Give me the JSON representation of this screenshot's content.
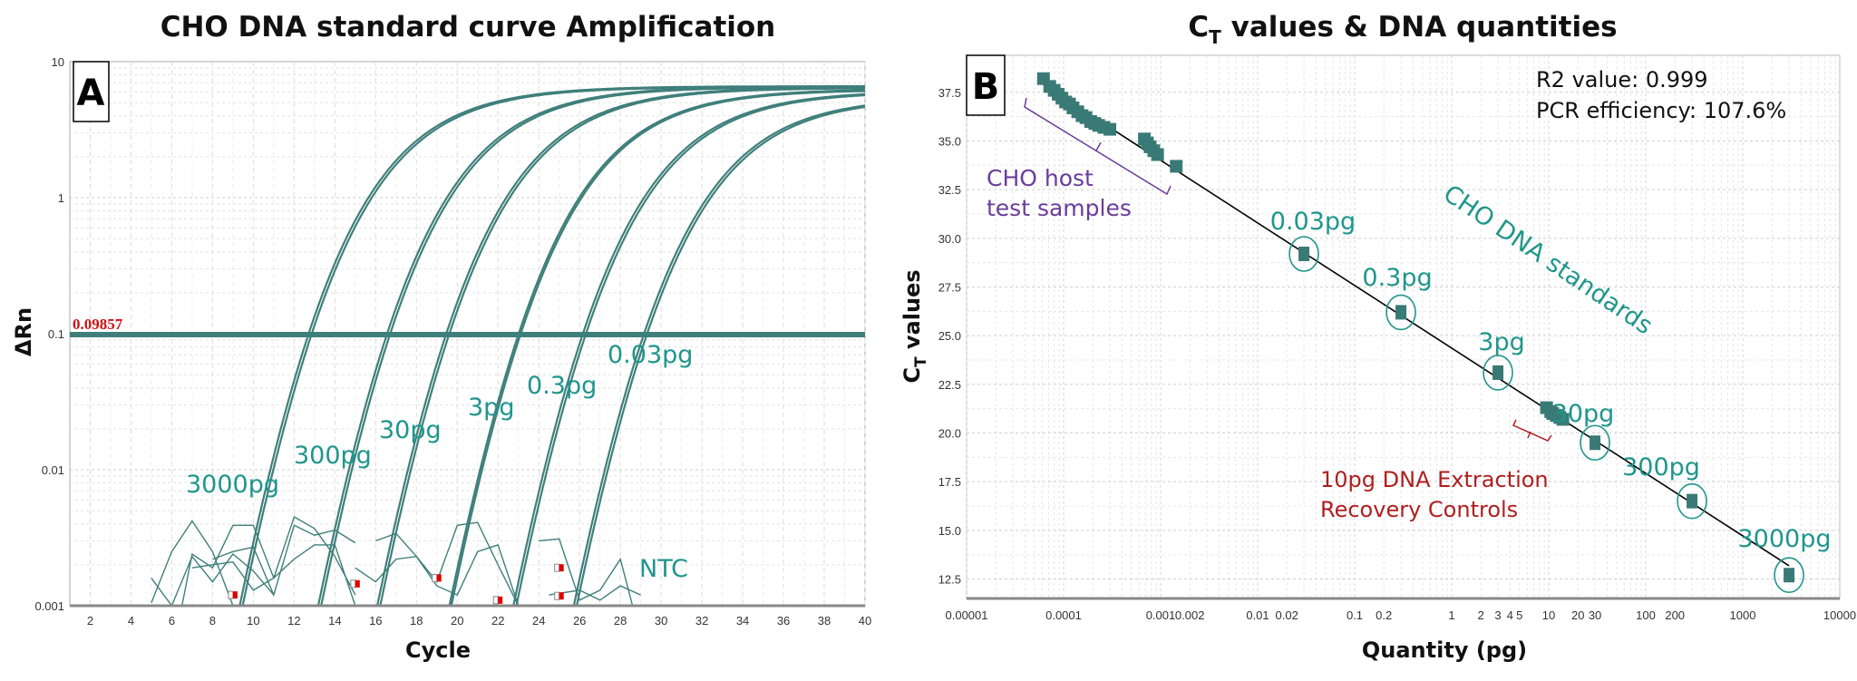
{
  "colors": {
    "curve": "#3f7f7b",
    "marker": "#3a7a76",
    "label_teal": "#1f968c",
    "threshold_label": "#d01010",
    "host_bracket": "#6a3d9a",
    "recovery": "#b01e1e",
    "fit_line": "#000000"
  },
  "chart_data": [
    {
      "type": "line",
      "panel_label": "A",
      "title": "CHO DNA standard curve Amplification",
      "xlabel": "Cycle",
      "ylabel": "ΔRn",
      "yscale": "log",
      "xlim": [
        1,
        40
      ],
      "ylim": [
        0.001,
        10
      ],
      "xticks": [
        "2",
        "4",
        "6",
        "8",
        "10",
        "12",
        "14",
        "16",
        "18",
        "20",
        "22",
        "24",
        "26",
        "28",
        "30",
        "32",
        "34",
        "36",
        "38",
        "40"
      ],
      "yticks": [
        "10",
        "1",
        "0.1",
        "0.01",
        "0.001"
      ],
      "grid": true,
      "threshold": 0.09857,
      "threshold_label": "0.09857",
      "series": [
        {
          "name": "3000pg",
          "ct": [
            12.7,
            12.85
          ],
          "plateau": [
            6.6,
            6.5
          ]
        },
        {
          "name": "300pg",
          "ct": [
            16.55,
            16.7
          ],
          "plateau": [
            6.6,
            6.5
          ]
        },
        {
          "name": "30pg",
          "ct": [
            19.45,
            19.6
          ],
          "plateau": [
            6.5,
            6.4
          ]
        },
        {
          "name": "3pg",
          "ct": [
            23.0,
            23.1
          ],
          "plateau": [
            6.3,
            6.2
          ]
        },
        {
          "name": "0.3pg",
          "ct": [
            26.15,
            26.3
          ],
          "plateau": [
            6.1,
            6.0
          ]
        },
        {
          "name": "0.03pg",
          "ct": [
            29.15,
            29.3
          ],
          "plateau": [
            5.5,
            5.4
          ]
        }
      ],
      "ntc": {
        "name": "NTC",
        "series": [
          [
            [
              5,
              0.00105
            ],
            [
              6,
              0.0025
            ],
            [
              7,
              0.0042
            ],
            [
              8,
              0.0025
            ],
            [
              9,
              0.001
            ]
          ],
          [
            [
              6.5,
              0.001
            ],
            [
              7,
              0.0024
            ],
            [
              8,
              0.0019
            ],
            [
              9,
              0.0039
            ],
            [
              10,
              0.0039
            ],
            [
              11,
              0.0016
            ],
            [
              12,
              0.0022
            ],
            [
              13,
              0.0028
            ],
            [
              14,
              0.0028
            ],
            [
              15,
              0.001
            ]
          ],
          [
            [
              7,
              0.0019
            ],
            [
              8,
              0.002
            ],
            [
              9,
              0.0021
            ],
            [
              10,
              0.0013
            ],
            [
              11,
              0.0016
            ],
            [
              12,
              0.0045
            ],
            [
              13,
              0.0037
            ],
            [
              14,
              0.0023
            ],
            [
              15,
              0.0012
            ]
          ],
          [
            [
              8,
              0.0022
            ],
            [
              9,
              0.0025
            ],
            [
              10,
              0.0027
            ],
            [
              11,
              0.0012
            ],
            [
              12,
              0.0039
            ],
            [
              13,
              0.0033
            ],
            [
              14,
              0.0036
            ],
            [
              15,
              0.0029
            ]
          ],
          [
            [
              15,
              0.0019
            ],
            [
              16,
              0.0015
            ],
            [
              17,
              0.0022
            ],
            [
              18,
              0.0023
            ],
            [
              19,
              0.0014
            ],
            [
              20,
              0.0012
            ],
            [
              21,
              0.0025
            ],
            [
              22,
              0.0028
            ],
            [
              23,
              0.001
            ]
          ],
          [
            [
              16,
              0.003
            ],
            [
              17,
              0.0034
            ],
            [
              18,
              0.0023
            ],
            [
              19,
              0.0015
            ],
            [
              20,
              0.0039
            ],
            [
              21,
              0.0041
            ],
            [
              22,
              0.002
            ],
            [
              23,
              0.001
            ]
          ],
          [
            [
              24,
              0.003
            ],
            [
              25,
              0.0031
            ],
            [
              26,
              0.0011
            ],
            [
              27,
              0.0013
            ],
            [
              28,
              0.0022
            ],
            [
              28.6,
              0.001
            ]
          ],
          [
            [
              24.5,
              0.0012
            ],
            [
              26,
              0.0013
            ],
            [
              27,
              0.0011
            ],
            [
              28,
              0.0014
            ],
            [
              29,
              0.0012
            ]
          ],
          [
            [
              5,
              0.0016
            ],
            [
              6,
              0.001
            ],
            [
              7,
              0.0023
            ],
            [
              8,
              0.0015
            ],
            [
              9,
              0.0024
            ],
            [
              10,
              0.0018
            ],
            [
              11,
              0.0012
            ]
          ]
        ],
        "markers": [
          [
            9,
            0.0012
          ],
          [
            15,
            0.00145
          ],
          [
            19,
            0.0016
          ],
          [
            22,
            0.0011
          ],
          [
            25,
            0.0019
          ],
          [
            25,
            0.00118
          ]
        ]
      }
    },
    {
      "type": "scatter",
      "panel_label": "B",
      "title_main": "C",
      "title_sub": "T",
      "title_rest": " values & DNA quantities",
      "xlabel": "Quantity (pg)",
      "ylabel_main": "C",
      "ylabel_sub": "T",
      "ylabel_rest": " values",
      "xscale": "log",
      "xlim": [
        1e-05,
        10000
      ],
      "ylim": [
        11.5,
        39.4
      ],
      "xticks": [
        [
          "0.00001",
          1e-05
        ],
        [
          "0.0001",
          0.0001
        ],
        [
          "0.001",
          0.001
        ],
        [
          "0.002",
          0.002
        ],
        [
          "0.01",
          0.01
        ],
        [
          "0.02",
          0.02
        ],
        [
          "0.1",
          0.1
        ],
        [
          "0.2",
          0.2
        ],
        [
          "1",
          1
        ],
        [
          "2",
          2
        ],
        [
          "3",
          3
        ],
        [
          "4",
          4
        ],
        [
          "5",
          5
        ],
        [
          "10",
          10
        ],
        [
          "20",
          20
        ],
        [
          "30",
          30
        ],
        [
          "100",
          100
        ],
        [
          "200",
          200
        ],
        [
          "1000",
          1000
        ],
        [
          "10000",
          10000
        ]
      ],
      "yticks": [
        "12.5",
        "15.0",
        "17.5",
        "20.0",
        "22.5",
        "25.0",
        "27.5",
        "30.0",
        "32.5",
        "35.0",
        "37.5"
      ],
      "grid": true,
      "r2_label": "R2 value: 0.999",
      "efficiency_label": "PCR efficiency: 107.6%",
      "standards_label": "CHO DNA standards",
      "host_label_1": "CHO host",
      "host_label_2": "test samples",
      "recovery_label_1": "10pg DNA Extraction",
      "recovery_label_2": "Recovery Controls",
      "standards": [
        {
          "name": "0.03pg",
          "x": 0.03,
          "y": 29.2
        },
        {
          "name": "0.3pg",
          "x": 0.3,
          "y": 26.2
        },
        {
          "name": "3pg",
          "x": 3,
          "y": 23.1
        },
        {
          "name": "30pg",
          "x": 30,
          "y": 19.5
        },
        {
          "name": "300pg",
          "x": 300,
          "y": 16.5
        },
        {
          "name": "3000pg",
          "x": 3000,
          "y": 12.7
        }
      ],
      "host_samples": [
        [
          6.2e-05,
          38.2
        ],
        [
          7.2e-05,
          37.8
        ],
        [
          8e-05,
          37.6
        ],
        [
          8.8e-05,
          37.4
        ],
        [
          9.6e-05,
          37.2
        ],
        [
          0.000105,
          37.0
        ],
        [
          0.000115,
          36.9
        ],
        [
          0.000125,
          36.7
        ],
        [
          0.00014,
          36.5
        ],
        [
          0.000155,
          36.3
        ],
        [
          0.00017,
          36.2
        ],
        [
          0.00019,
          36.0
        ],
        [
          0.00021,
          35.9
        ],
        [
          0.00023,
          35.8
        ],
        [
          0.00026,
          35.7
        ],
        [
          0.0003,
          35.6
        ],
        [
          0.00068,
          35.1
        ],
        [
          0.00073,
          34.9
        ],
        [
          0.00078,
          34.7
        ],
        [
          0.00085,
          34.5
        ],
        [
          0.00093,
          34.3
        ],
        [
          0.00145,
          33.7
        ]
      ],
      "recovery_controls": [
        [
          9.5,
          21.3
        ],
        [
          10.5,
          21.1
        ],
        [
          11,
          21.0
        ],
        [
          12,
          20.9
        ],
        [
          13,
          20.8
        ],
        [
          14,
          20.7
        ]
      ]
    }
  ]
}
